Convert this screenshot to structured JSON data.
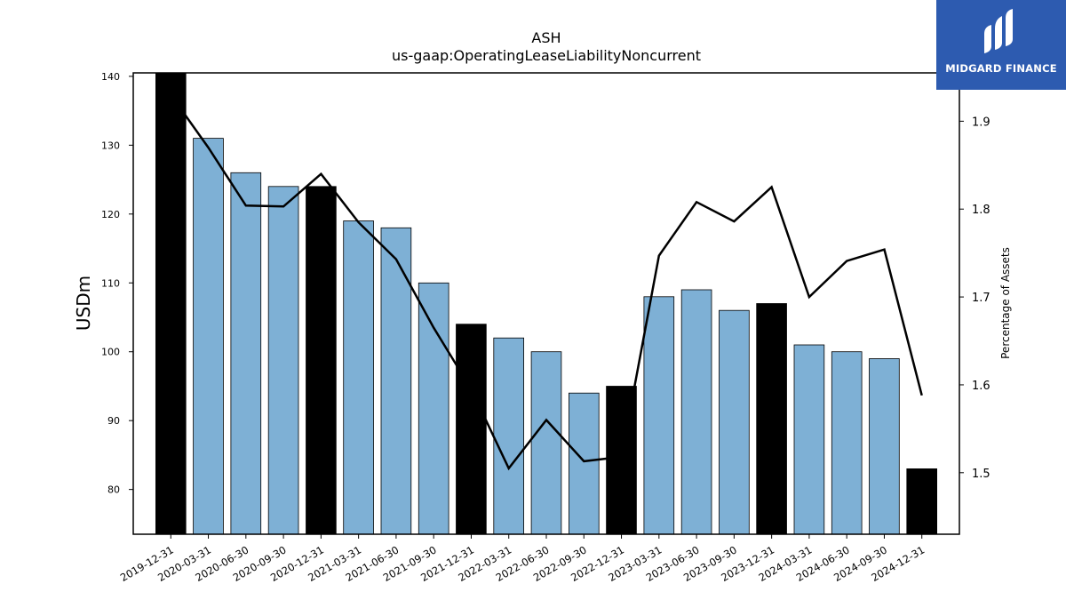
{
  "chart_data": {
    "type": "bar",
    "title": "ASH",
    "subtitle": "us-gaap:OperatingLeaseLiabilityNoncurrent",
    "ylabel": "USDm",
    "y2label": "Percentage of Assets",
    "ylim": [
      73.5,
      140.5
    ],
    "y2lim": [
      1.43,
      1.955
    ],
    "yticks": [
      80,
      90,
      100,
      110,
      120,
      130,
      140
    ],
    "y2ticks": [
      1.5,
      1.6,
      1.7,
      1.8,
      1.9
    ],
    "categories": [
      "2019-12-31",
      "2020-03-31",
      "2020-06-30",
      "2020-09-30",
      "2020-12-31",
      "2021-03-31",
      "2021-06-30",
      "2021-09-30",
      "2021-12-31",
      "2022-03-31",
      "2022-06-30",
      "2022-09-30",
      "2022-12-31",
      "2023-03-31",
      "2023-06-30",
      "2023-09-30",
      "2023-12-31",
      "2024-03-31",
      "2024-06-30",
      "2024-09-30",
      "2024-12-31"
    ],
    "values": [
      141,
      131,
      126,
      124,
      124,
      119,
      118,
      110,
      104,
      102,
      100,
      94,
      95,
      108,
      109,
      106,
      107,
      101,
      100,
      99,
      83
    ],
    "year_end": [
      true,
      false,
      false,
      false,
      true,
      false,
      false,
      false,
      true,
      false,
      false,
      false,
      true,
      false,
      false,
      false,
      true,
      false,
      false,
      false,
      true
    ],
    "line_values": [
      1.93,
      1.87,
      1.804,
      1.803,
      1.84,
      1.785,
      1.743,
      1.665,
      1.595,
      1.505,
      1.56,
      1.513,
      1.518,
      1.747,
      1.808,
      1.786,
      1.825,
      1.7,
      1.741,
      1.754,
      1.588
    ],
    "colors": {
      "bar": "#7eb0d5",
      "bar_year_end": "#000000",
      "line": "#000000"
    },
    "grid": false
  },
  "logo": {
    "text": "MIDGARD FINANCE",
    "icon": "midgard-logo-icon",
    "bg": "#2d5bb0"
  }
}
